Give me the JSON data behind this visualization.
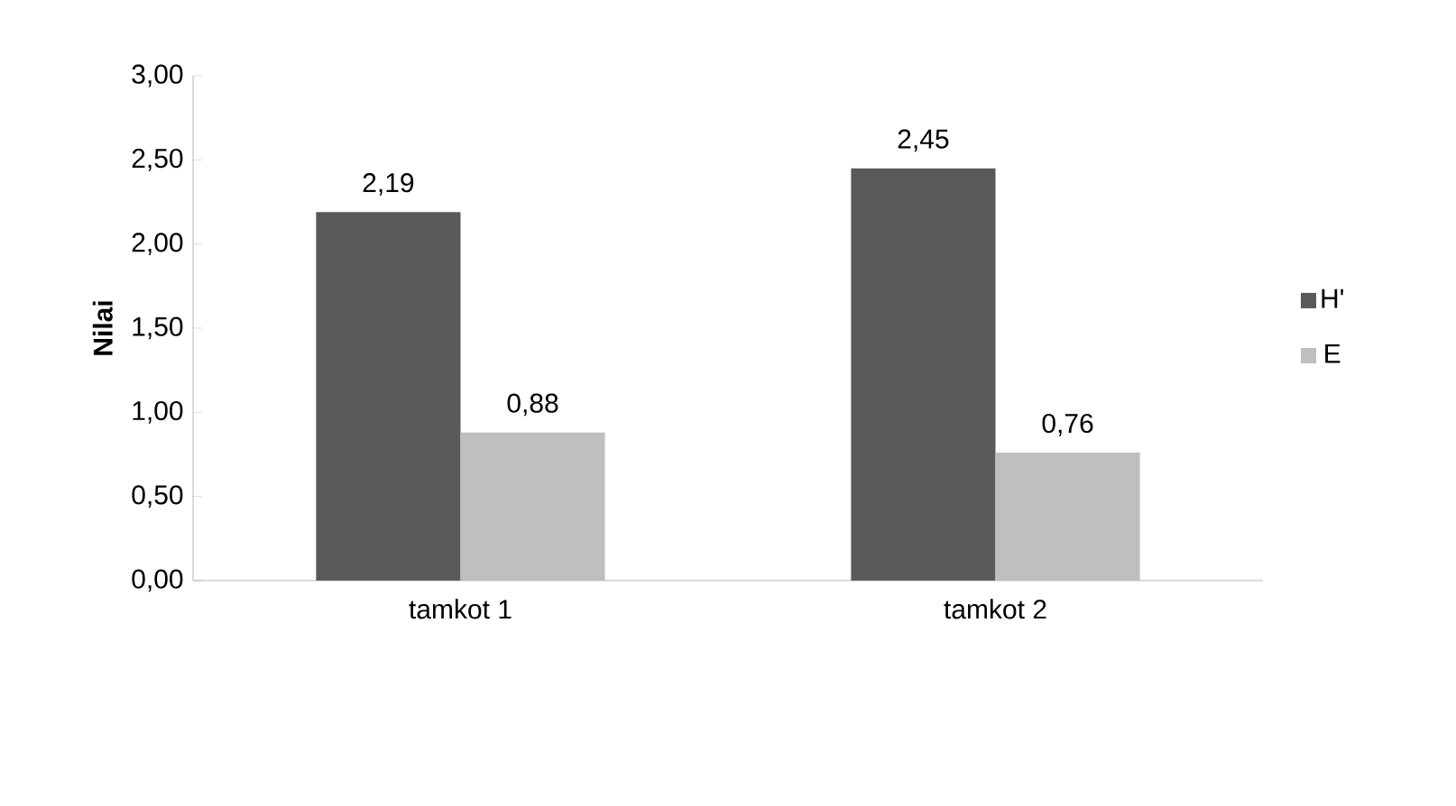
{
  "chart_data": {
    "type": "bar",
    "ylabel": "Nilai",
    "categories": [
      "tamkot 1",
      "tamkot 2"
    ],
    "series": [
      {
        "name": "H'",
        "color": "#595959",
        "values": [
          2.19,
          2.45
        ],
        "value_labels": [
          "2,19",
          "2,45"
        ]
      },
      {
        "name": "E",
        "color": "#bfbfbf",
        "values": [
          0.88,
          0.76
        ],
        "value_labels": [
          "0,88",
          "0,76"
        ]
      }
    ],
    "ylim": [
      0,
      3
    ],
    "yticks": [
      {
        "value": 0,
        "label": "0,00"
      },
      {
        "value": 0.5,
        "label": "0,50"
      },
      {
        "value": 1,
        "label": "1,00"
      },
      {
        "value": 1.5,
        "label": "1,50"
      },
      {
        "value": 2,
        "label": "2,00"
      },
      {
        "value": 2.5,
        "label": "2,50"
      },
      {
        "value": 3,
        "label": "3,00"
      }
    ],
    "grid": false,
    "legend": "right"
  }
}
